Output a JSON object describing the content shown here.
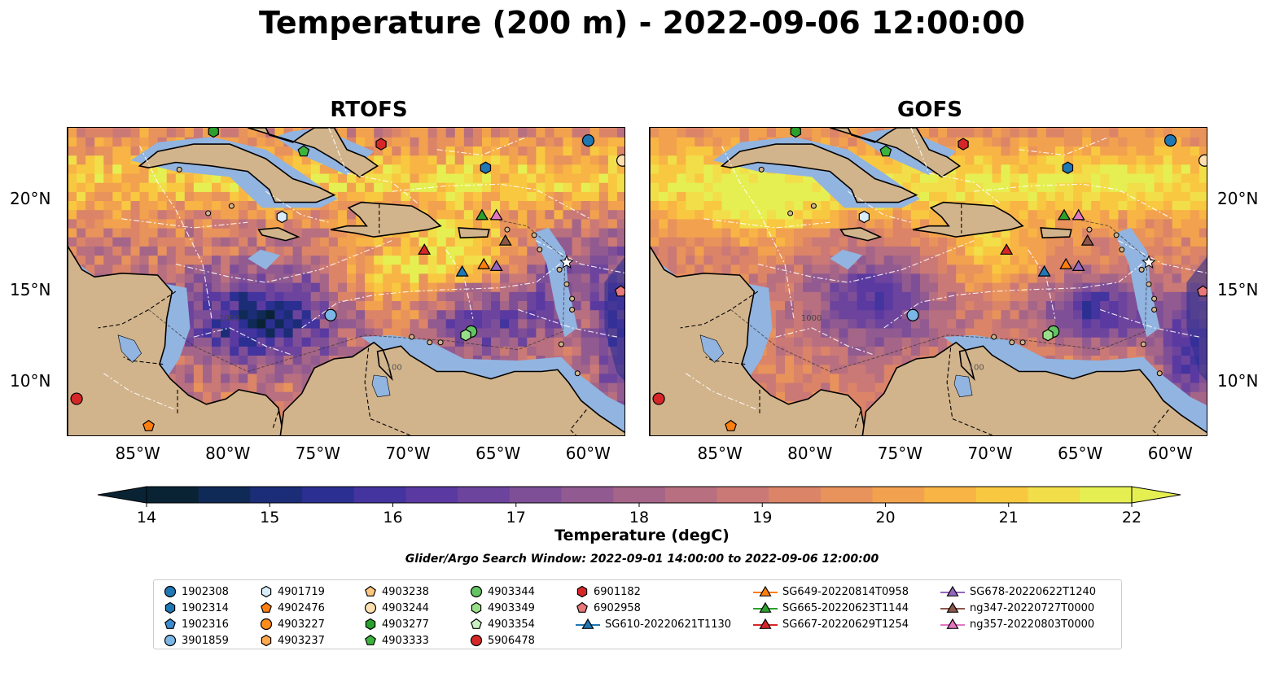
{
  "title": "Temperature (200 m) - 2022-09-06 12:00:00",
  "panels": [
    {
      "title": "RTOFS"
    },
    {
      "title": "GOFS"
    }
  ],
  "axes": {
    "lon_ticks": [
      "85°W",
      "80°W",
      "75°W",
      "70°W",
      "65°W",
      "60°W"
    ],
    "lat_ticks": [
      "20°N",
      "15°N",
      "10°N"
    ],
    "lon_range": [
      -89,
      -58
    ],
    "lat_range": [
      7,
      24
    ]
  },
  "contour_labels": [
    "100",
    "1000"
  ],
  "colorbar": {
    "label": "Temperature (degC)",
    "ticks": [
      "14",
      "15",
      "16",
      "17",
      "18",
      "19",
      "20",
      "21",
      "22"
    ],
    "range": [
      14,
      22
    ],
    "colors": [
      "#0a2334",
      "#102a57",
      "#1c2d78",
      "#2c2f92",
      "#43349f",
      "#5a3aa1",
      "#6c449e",
      "#7e4f97",
      "#915a90",
      "#a46588",
      "#b86f80",
      "#cb7976",
      "#db8468",
      "#e8925c",
      "#f2a24e",
      "#f8b444",
      "#f9c841",
      "#f1de49",
      "#e6ef52"
    ],
    "extend_colors": {
      "low": "#0a2334",
      "high": "#e6ef52"
    }
  },
  "search_window": "Glider/Argo Search Window: 2022-09-01 14:00:00 to 2022-09-06 12:00:00",
  "map_colors": {
    "land": "#d2b48c",
    "shelf": "#92b4e0",
    "deep_ocean": "#0a2334",
    "eez_lines": "#ffffff",
    "coast": "#000000"
  },
  "legend": {
    "items": [
      {
        "label": "1902308",
        "marker": "circle",
        "color": "#1f77b4"
      },
      {
        "label": "1902314",
        "marker": "hexagon",
        "color": "#1f77b4"
      },
      {
        "label": "1902316",
        "marker": "pentagon",
        "color": "#3e8cd0"
      },
      {
        "label": "3901859",
        "marker": "circle",
        "color": "#7ab7e6"
      },
      {
        "label": "4901719",
        "marker": "hexagon",
        "color": "#d9ecfa"
      },
      {
        "label": "4902476",
        "marker": "pentagon",
        "color": "#ff7f0e"
      },
      {
        "label": "4903227",
        "marker": "circle",
        "color": "#ff8c1a"
      },
      {
        "label": "4903237",
        "marker": "hexagon",
        "color": "#ffa84d"
      },
      {
        "label": "4903238",
        "marker": "pentagon",
        "color": "#ffc680"
      },
      {
        "label": "4903244",
        "marker": "circle",
        "color": "#ffdfb0"
      },
      {
        "label": "4903277",
        "marker": "hexagon",
        "color": "#2ca02c"
      },
      {
        "label": "4903333",
        "marker": "pentagon",
        "color": "#3cb33c"
      },
      {
        "label": "4903344",
        "marker": "circle",
        "color": "#63c463"
      },
      {
        "label": "4903349",
        "marker": "hexagon",
        "color": "#98df8a"
      },
      {
        "label": "4903354",
        "marker": "pentagon",
        "color": "#c9f0c0"
      },
      {
        "label": "5906478",
        "marker": "circle",
        "color": "#d62728"
      },
      {
        "label": "6901182",
        "marker": "hexagon",
        "color": "#d62728"
      },
      {
        "label": "6902958",
        "marker": "pentagon",
        "color": "#e8787a"
      },
      {
        "label": "SG610-20220621T1130",
        "marker": "triangle",
        "color": "#1f77b4"
      },
      {
        "label": "SG649-20220814T0958",
        "marker": "triangle",
        "color": "#ff7f0e"
      },
      {
        "label": "SG665-20220623T1144",
        "marker": "triangle",
        "color": "#2ca02c"
      },
      {
        "label": "SG667-20220629T1254",
        "marker": "triangle",
        "color": "#d62728"
      },
      {
        "label": "SG678-20220622T1240",
        "marker": "triangle",
        "color": "#9467bd"
      },
      {
        "label": "ng347-20220727T0000",
        "marker": "triangle",
        "color": "#8c564b"
      },
      {
        "label": "ng357-20220803T0000",
        "marker": "triangle",
        "color": "#e377c2"
      }
    ]
  },
  "observations": [
    {
      "id": "1902308",
      "lon": -60.1,
      "lat": 23.3
    },
    {
      "id": "1902314",
      "lon": -65.8,
      "lat": 21.8
    },
    {
      "id": "3901859",
      "lon": -74.4,
      "lat": 13.7
    },
    {
      "id": "4901719",
      "lon": -77.1,
      "lat": 19.1
    },
    {
      "id": "4902476",
      "lon": -84.5,
      "lat": 7.6
    },
    {
      "id": "4903244",
      "lon": -58.2,
      "lat": 22.2
    },
    {
      "id": "4903277",
      "lon": -80.9,
      "lat": 23.8
    },
    {
      "id": "4903333",
      "lon": -75.9,
      "lat": 22.7
    },
    {
      "id": "4903344",
      "lon": -66.6,
      "lat": 12.8
    },
    {
      "id": "4903349",
      "lon": -66.9,
      "lat": 12.6
    },
    {
      "id": "5906478",
      "lon": -88.5,
      "lat": 9.1
    },
    {
      "id": "6901182",
      "lon": -71.6,
      "lat": 23.1
    },
    {
      "id": "6902958",
      "lon": -58.3,
      "lat": 15.0
    },
    {
      "id": "SG610-20220621T1130",
      "lon": -67.1,
      "lat": 16.1
    },
    {
      "id": "SG649-20220814T0958",
      "lon": -65.9,
      "lat": 16.5
    },
    {
      "id": "SG665-20220623T1144",
      "lon": -66.0,
      "lat": 19.2
    },
    {
      "id": "SG667-20220629T1254",
      "lon": -69.2,
      "lat": 17.3
    },
    {
      "id": "SG678-20220622T1240",
      "lon": -65.2,
      "lat": 16.4
    },
    {
      "id": "ng347-20220727T0000",
      "lon": -64.7,
      "lat": 17.8
    },
    {
      "id": "ng357-20220803T0000",
      "lon": -65.2,
      "lat": 19.2
    }
  ]
}
